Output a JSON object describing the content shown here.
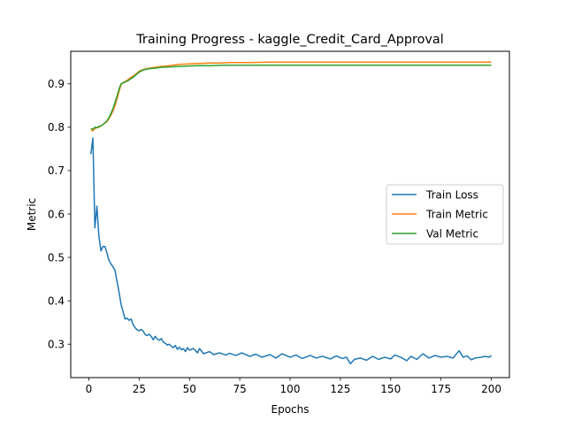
{
  "chart_data": {
    "type": "line",
    "title": "Training Progress - kaggle_Credit_Card_Approval",
    "xlabel": "Epochs",
    "ylabel": "Metric",
    "xlim": [
      -9,
      209
    ],
    "ylim": [
      0.223,
      0.975
    ],
    "xticks": [
      0,
      25,
      50,
      75,
      100,
      125,
      150,
      175,
      200
    ],
    "yticks": [
      0.3,
      0.4,
      0.5,
      0.6,
      0.7,
      0.8,
      0.9
    ],
    "grid": false,
    "legend_position": "center-right",
    "series": [
      {
        "name": "Train Loss",
        "color": "#1f77b4",
        "points": [
          [
            1,
            0.738
          ],
          [
            2,
            0.775
          ],
          [
            3,
            0.568
          ],
          [
            4,
            0.618
          ],
          [
            5,
            0.548
          ],
          [
            6,
            0.515
          ],
          [
            7,
            0.525
          ],
          [
            8,
            0.525
          ],
          [
            9,
            0.51
          ],
          [
            10,
            0.493
          ],
          [
            11,
            0.485
          ],
          [
            12,
            0.478
          ],
          [
            13,
            0.47
          ],
          [
            14,
            0.445
          ],
          [
            15,
            0.42
          ],
          [
            16,
            0.392
          ],
          [
            17,
            0.375
          ],
          [
            18,
            0.358
          ],
          [
            19,
            0.36
          ],
          [
            20,
            0.355
          ],
          [
            21,
            0.358
          ],
          [
            22,
            0.345
          ],
          [
            23,
            0.338
          ],
          [
            24,
            0.333
          ],
          [
            25,
            0.331
          ],
          [
            26,
            0.334
          ],
          [
            27,
            0.33
          ],
          [
            28,
            0.322
          ],
          [
            29,
            0.32
          ],
          [
            30,
            0.323
          ],
          [
            31,
            0.318
          ],
          [
            32,
            0.31
          ],
          [
            33,
            0.318
          ],
          [
            34,
            0.312
          ],
          [
            35,
            0.309
          ],
          [
            36,
            0.313
          ],
          [
            37,
            0.305
          ],
          [
            38,
            0.302
          ],
          [
            39,
            0.298
          ],
          [
            40,
            0.3
          ],
          [
            41,
            0.295
          ],
          [
            42,
            0.292
          ],
          [
            43,
            0.297
          ],
          [
            44,
            0.288
          ],
          [
            45,
            0.293
          ],
          [
            46,
            0.287
          ],
          [
            47,
            0.29
          ],
          [
            48,
            0.283
          ],
          [
            49,
            0.292
          ],
          [
            50,
            0.286
          ],
          [
            52,
            0.29
          ],
          [
            54,
            0.28
          ],
          [
            55,
            0.29
          ],
          [
            57,
            0.278
          ],
          [
            60,
            0.283
          ],
          [
            62,
            0.276
          ],
          [
            65,
            0.28
          ],
          [
            68,
            0.275
          ],
          [
            70,
            0.279
          ],
          [
            73,
            0.274
          ],
          [
            76,
            0.28
          ],
          [
            80,
            0.272
          ],
          [
            83,
            0.277
          ],
          [
            86,
            0.27
          ],
          [
            90,
            0.276
          ],
          [
            93,
            0.268
          ],
          [
            96,
            0.278
          ],
          [
            100,
            0.27
          ],
          [
            103,
            0.275
          ],
          [
            106,
            0.267
          ],
          [
            110,
            0.274
          ],
          [
            113,
            0.268
          ],
          [
            116,
            0.272
          ],
          [
            120,
            0.266
          ],
          [
            123,
            0.273
          ],
          [
            126,
            0.267
          ],
          [
            128,
            0.27
          ],
          [
            130,
            0.255
          ],
          [
            132,
            0.265
          ],
          [
            135,
            0.268
          ],
          [
            138,
            0.263
          ],
          [
            141,
            0.272
          ],
          [
            144,
            0.265
          ],
          [
            147,
            0.27
          ],
          [
            150,
            0.266
          ],
          [
            152,
            0.275
          ],
          [
            155,
            0.27
          ],
          [
            158,
            0.262
          ],
          [
            160,
            0.272
          ],
          [
            163,
            0.265
          ],
          [
            166,
            0.278
          ],
          [
            169,
            0.268
          ],
          [
            172,
            0.274
          ],
          [
            175,
            0.27
          ],
          [
            178,
            0.272
          ],
          [
            181,
            0.268
          ],
          [
            184,
            0.285
          ],
          [
            186,
            0.27
          ],
          [
            188,
            0.273
          ],
          [
            190,
            0.264
          ],
          [
            192,
            0.268
          ],
          [
            195,
            0.27
          ],
          [
            197,
            0.272
          ],
          [
            199,
            0.27
          ],
          [
            200,
            0.274
          ]
        ]
      },
      {
        "name": "Train Metric",
        "color": "#ff7f0e",
        "points": [
          [
            1,
            0.793
          ],
          [
            2,
            0.792
          ],
          [
            3,
            0.797
          ],
          [
            4,
            0.799
          ],
          [
            5,
            0.8
          ],
          [
            6,
            0.803
          ],
          [
            7,
            0.806
          ],
          [
            8,
            0.81
          ],
          [
            9,
            0.813
          ],
          [
            10,
            0.82
          ],
          [
            11,
            0.828
          ],
          [
            12,
            0.838
          ],
          [
            13,
            0.85
          ],
          [
            14,
            0.866
          ],
          [
            15,
            0.883
          ],
          [
            16,
            0.898
          ],
          [
            17,
            0.903
          ],
          [
            18,
            0.905
          ],
          [
            19,
            0.908
          ],
          [
            20,
            0.912
          ],
          [
            21,
            0.915
          ],
          [
            22,
            0.918
          ],
          [
            23,
            0.921
          ],
          [
            24,
            0.925
          ],
          [
            25,
            0.929
          ],
          [
            27,
            0.933
          ],
          [
            30,
            0.936
          ],
          [
            33,
            0.938
          ],
          [
            36,
            0.94
          ],
          [
            40,
            0.942
          ],
          [
            45,
            0.945
          ],
          [
            50,
            0.946
          ],
          [
            55,
            0.947
          ],
          [
            60,
            0.948
          ],
          [
            65,
            0.948
          ],
          [
            70,
            0.949
          ],
          [
            80,
            0.949
          ],
          [
            90,
            0.95
          ],
          [
            100,
            0.95
          ],
          [
            120,
            0.95
          ],
          [
            140,
            0.95
          ],
          [
            160,
            0.95
          ],
          [
            180,
            0.95
          ],
          [
            200,
            0.95
          ]
        ]
      },
      {
        "name": "Val Metric",
        "color": "#2ca02c",
        "points": [
          [
            1,
            0.797
          ],
          [
            2,
            0.795
          ],
          [
            3,
            0.8
          ],
          [
            4,
            0.799
          ],
          [
            5,
            0.802
          ],
          [
            6,
            0.803
          ],
          [
            7,
            0.806
          ],
          [
            8,
            0.81
          ],
          [
            9,
            0.815
          ],
          [
            10,
            0.822
          ],
          [
            11,
            0.832
          ],
          [
            12,
            0.843
          ],
          [
            13,
            0.857
          ],
          [
            14,
            0.872
          ],
          [
            15,
            0.888
          ],
          [
            16,
            0.9
          ],
          [
            17,
            0.902
          ],
          [
            18,
            0.904
          ],
          [
            19,
            0.906
          ],
          [
            20,
            0.909
          ],
          [
            21,
            0.912
          ],
          [
            22,
            0.915
          ],
          [
            23,
            0.919
          ],
          [
            24,
            0.923
          ],
          [
            25,
            0.927
          ],
          [
            27,
            0.932
          ],
          [
            30,
            0.935
          ],
          [
            33,
            0.936
          ],
          [
            36,
            0.938
          ],
          [
            40,
            0.939
          ],
          [
            45,
            0.94
          ],
          [
            50,
            0.941
          ],
          [
            55,
            0.942
          ],
          [
            60,
            0.942
          ],
          [
            70,
            0.943
          ],
          [
            80,
            0.943
          ],
          [
            100,
            0.943
          ],
          [
            120,
            0.943
          ],
          [
            140,
            0.943
          ],
          [
            160,
            0.943
          ],
          [
            180,
            0.943
          ],
          [
            200,
            0.943
          ]
        ]
      }
    ]
  }
}
